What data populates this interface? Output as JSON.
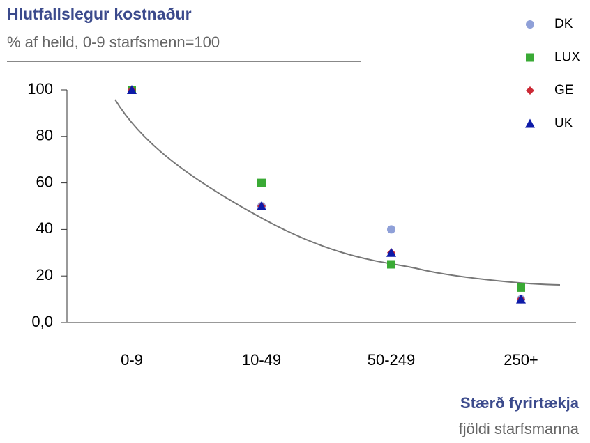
{
  "chart_data": {
    "type": "scatter",
    "title": "Hlutfallslegur kostnaður",
    "subtitle": "% af heild, 0-9 starfsmenn=100",
    "x_label": "Stærð fyrirtækja",
    "x_sublabel": "fjöldi starfsmanna",
    "categories": [
      "0-9",
      "10-49",
      "50-249",
      "250+"
    ],
    "series": [
      {
        "name": "DK",
        "color": "#8fa0d8",
        "marker": "circle",
        "values": [
          100,
          50,
          40,
          10
        ]
      },
      {
        "name": "LUX",
        "color": "#3aaa35",
        "marker": "square",
        "values": [
          100,
          60,
          25,
          15
        ]
      },
      {
        "name": "GE",
        "color": "#cc2a36",
        "marker": "diamond",
        "values": [
          100,
          50,
          30,
          10
        ]
      },
      {
        "name": "UK",
        "color": "#0d1aa8",
        "marker": "triangle",
        "values": [
          100,
          50,
          30,
          10
        ]
      }
    ],
    "ylim": [
      0,
      100
    ],
    "yticks": [
      {
        "value": 0,
        "label": "0,0"
      },
      20,
      40,
      60,
      80,
      100
    ],
    "legend": "top-right"
  }
}
